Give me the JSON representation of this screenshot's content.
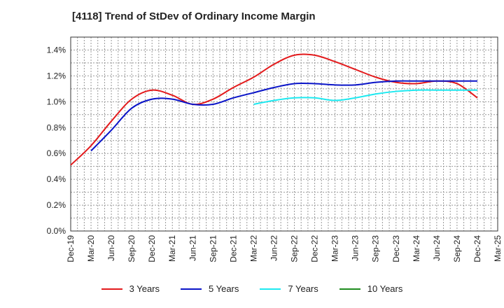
{
  "chart_data": {
    "type": "line",
    "title": "[4118]  Trend of StDev of Ordinary Income Margin",
    "xlabel": "",
    "ylabel": "",
    "x_ticks": [
      "Dec-19",
      "Mar-20",
      "Jun-20",
      "Sep-20",
      "Dec-20",
      "Mar-21",
      "Jun-21",
      "Sep-21",
      "Dec-21",
      "Mar-22",
      "Jun-22",
      "Sep-22",
      "Dec-22",
      "Mar-23",
      "Jun-23",
      "Sep-23",
      "Dec-23",
      "Mar-24",
      "Jun-24",
      "Sep-24",
      "Dec-24",
      "Mar-25"
    ],
    "y_ticks": [
      "0.0%",
      "0.2%",
      "0.4%",
      "0.6%",
      "0.8%",
      "1.0%",
      "1.2%",
      "1.4%"
    ],
    "ylim": [
      0,
      1.5
    ],
    "y_unit": "%",
    "grid": true,
    "legend_position": "bottom",
    "series": [
      {
        "name": "3 Years",
        "color": "#e31a1c",
        "x": [
          "Dec-19",
          "Mar-20",
          "Jun-20",
          "Sep-20",
          "Dec-20",
          "Mar-21",
          "Jun-21",
          "Sep-21",
          "Dec-21",
          "Mar-22",
          "Jun-22",
          "Sep-22",
          "Dec-22",
          "Mar-23",
          "Jun-23",
          "Sep-23",
          "Dec-23",
          "Mar-24",
          "Jun-24",
          "Sep-24",
          "Dec-24"
        ],
        "values": [
          0.51,
          0.66,
          0.85,
          1.02,
          1.09,
          1.05,
          0.98,
          1.02,
          1.11,
          1.19,
          1.29,
          1.36,
          1.36,
          1.31,
          1.25,
          1.19,
          1.15,
          1.14,
          1.16,
          1.14,
          1.03
        ]
      },
      {
        "name": "5 Years",
        "color": "#0a14c8",
        "x": [
          "Mar-20",
          "Jun-20",
          "Sep-20",
          "Dec-20",
          "Mar-21",
          "Jun-21",
          "Sep-21",
          "Dec-21",
          "Mar-22",
          "Jun-22",
          "Sep-22",
          "Dec-22",
          "Mar-23",
          "Jun-23",
          "Sep-23",
          "Dec-23",
          "Mar-24",
          "Jun-24",
          "Sep-24",
          "Dec-24"
        ],
        "values": [
          0.62,
          0.78,
          0.95,
          1.02,
          1.02,
          0.98,
          0.98,
          1.03,
          1.07,
          1.11,
          1.14,
          1.14,
          1.13,
          1.13,
          1.15,
          1.16,
          1.16,
          1.16,
          1.16,
          1.16
        ]
      },
      {
        "name": "7 Years",
        "color": "#1de9f0",
        "x": [
          "Mar-22",
          "Jun-22",
          "Sep-22",
          "Dec-22",
          "Mar-23",
          "Jun-23",
          "Sep-23",
          "Dec-23",
          "Mar-24",
          "Jun-24",
          "Sep-24",
          "Dec-24"
        ],
        "values": [
          0.98,
          1.01,
          1.03,
          1.03,
          1.01,
          1.03,
          1.06,
          1.08,
          1.09,
          1.09,
          1.09,
          1.09
        ]
      },
      {
        "name": "10 Years",
        "color": "#1e8c1e",
        "x": [],
        "values": []
      }
    ]
  }
}
